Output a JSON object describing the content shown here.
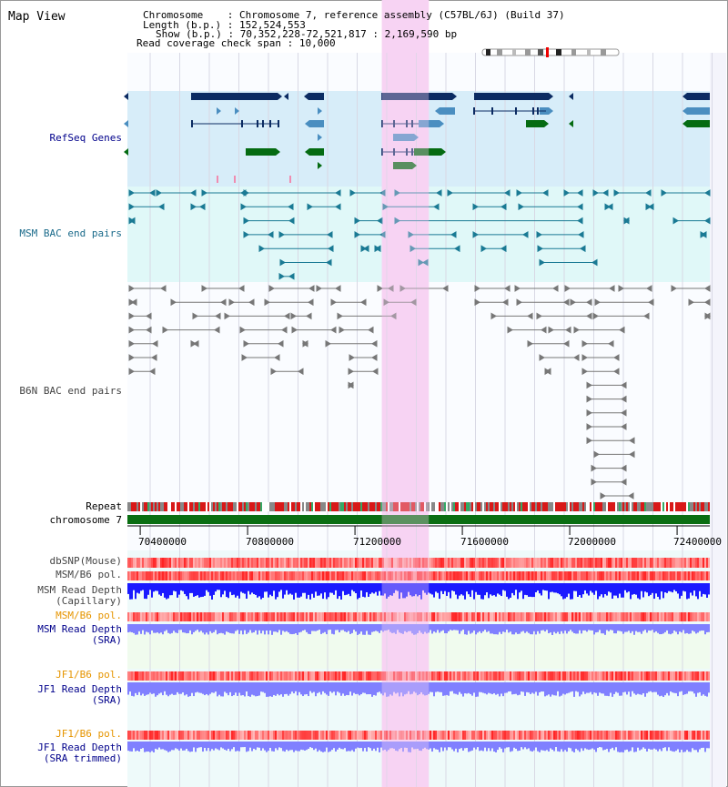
{
  "app": {
    "title": "Map View"
  },
  "info": {
    "chromosome_label": "Chromosome",
    "chromosome_value": "Chromosome 7, reference assembly (C57BL/6J) (Build 37)",
    "length_label": "Length (b.p.)",
    "length_value": "152,524,553",
    "show_label": "Show (b.p.)",
    "show_value": "70,352,228-72,521,817 : 2,169,590 bp",
    "coverage_label": "Read coverage check span",
    "coverage_value": "10,000"
  },
  "tracks": {
    "refseq": "RefSeq Genes",
    "msm_bac": "MSM BAC end pairs",
    "b6n_bac": "B6N BAC end pairs",
    "repeat": "Repeat",
    "chromosome": "chromosome 7",
    "dbsnp": "dbSNP(Mouse)",
    "msm_b6_pol": "MSM/B6 pol.",
    "msm_depth_cap_1": "MSM Read Depth",
    "msm_depth_cap_2": "(Capillary)",
    "msm_b6_pol_2": "MSM/B6 pol.",
    "msm_depth_sra_1": "MSM Read Depth",
    "msm_depth_sra_2": "(SRA)",
    "jf1_b6_pol": "JF1/B6 pol.",
    "jf1_depth_sra_1": "JF1 Read Depth",
    "jf1_depth_sra_2": "(SRA)",
    "jf1_b6_pol_2": "JF1/B6 pol.",
    "jf1_depth_trim_1": "JF1 Read Depth",
    "jf1_depth_trim_2": "(SRA trimmed)"
  },
  "axis": {
    "ticks": [
      "70400000",
      "70800000",
      "71200000",
      "71600000",
      "72000000",
      "72400000"
    ],
    "tick_values": [
      70400000,
      70800000,
      71200000,
      71600000,
      72000000,
      72400000
    ],
    "range": [
      70352228,
      72521817
    ]
  },
  "highlight": {
    "start": 71300000,
    "end": 71475000,
    "color": "#f7d3f3"
  },
  "colors": {
    "refseq_bg": "#d7edf9",
    "msm_bg": "#e0f8f8",
    "gene_dark": "#0b2b62",
    "gene_mid": "#4a8ec0",
    "gene_green": "#056b12",
    "msm_pair": "#1a7a94",
    "b6n_pair": "#777777",
    "depth_blue": "#1a1aff",
    "depth_light": "#8080ff",
    "chrom_green": "#0a6e12"
  }
}
